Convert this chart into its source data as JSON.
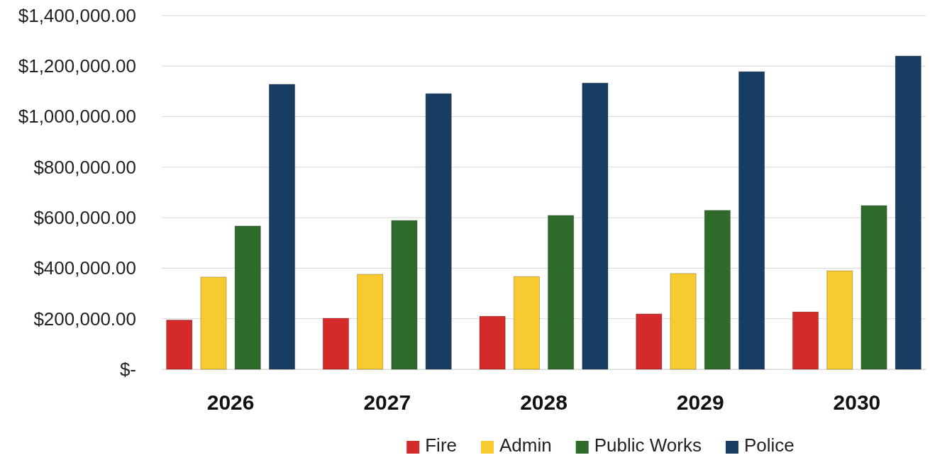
{
  "chart_data": {
    "type": "bar",
    "categories": [
      "2026",
      "2027",
      "2028",
      "2029",
      "2030"
    ],
    "series": [
      {
        "name": "Fire",
        "color": "#d42a2a",
        "values": [
          195000,
          202000,
          210000,
          219000,
          227000
        ]
      },
      {
        "name": "Admin",
        "color": "#f7cb2f",
        "values": [
          365000,
          376000,
          367000,
          379000,
          390000
        ]
      },
      {
        "name": "Public Works",
        "color": "#2e6a2a",
        "values": [
          567000,
          589000,
          609000,
          629000,
          648000
        ]
      },
      {
        "name": "Police",
        "color": "#173d63",
        "values": [
          1128000,
          1091000,
          1133000,
          1178000,
          1240000
        ]
      }
    ],
    "ylim": [
      0,
      1400000
    ],
    "yticks": [
      {
        "value": 0,
        "label": "$-"
      },
      {
        "value": 200000,
        "label": "$200,000.00"
      },
      {
        "value": 400000,
        "label": "$400,000.00"
      },
      {
        "value": 600000,
        "label": "$600,000.00"
      },
      {
        "value": 800000,
        "label": "$800,000.00"
      },
      {
        "value": 1000000,
        "label": "$1,000,000.00"
      },
      {
        "value": 1200000,
        "label": "$1,200,000.00"
      },
      {
        "value": 1400000,
        "label": "$1,400,000.00"
      }
    ],
    "grid": "y",
    "legend": "bottom"
  }
}
